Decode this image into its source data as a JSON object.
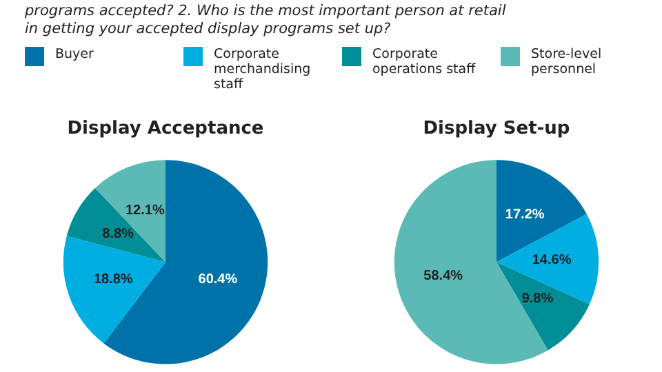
{
  "chart_data": [
    {
      "type": "pie",
      "title": "Display Acceptance",
      "annotations": [
        "programs accepted? 2. Who is the most important person at retail",
        "in getting your accepted display programs set up?"
      ],
      "legend": "top",
      "categories": [
        "Buyer",
        "Corporate merchandising staff",
        "Corporate operations staff",
        "Store-level personnel"
      ],
      "values": [
        60.4,
        18.8,
        8.8,
        12.1
      ],
      "value_labels": [
        "60.4%",
        "18.8%",
        "8.8%",
        "12.1%"
      ],
      "colors": [
        "#0072aa",
        "#00aee1",
        "#008e96",
        "#5bbab5"
      ]
    },
    {
      "type": "pie",
      "title": "Display Set-up",
      "legend": false,
      "categories": [
        null,
        null,
        null,
        null
      ],
      "values": [
        17.2,
        14.6,
        9.8,
        58.4
      ],
      "value_labels": [
        "17.2%",
        "14.6%",
        "9.8%",
        "58.4%"
      ],
      "colors": [
        "#0072aa",
        "#00aee1",
        "#008e96",
        "#5bbab5"
      ]
    }
  ]
}
